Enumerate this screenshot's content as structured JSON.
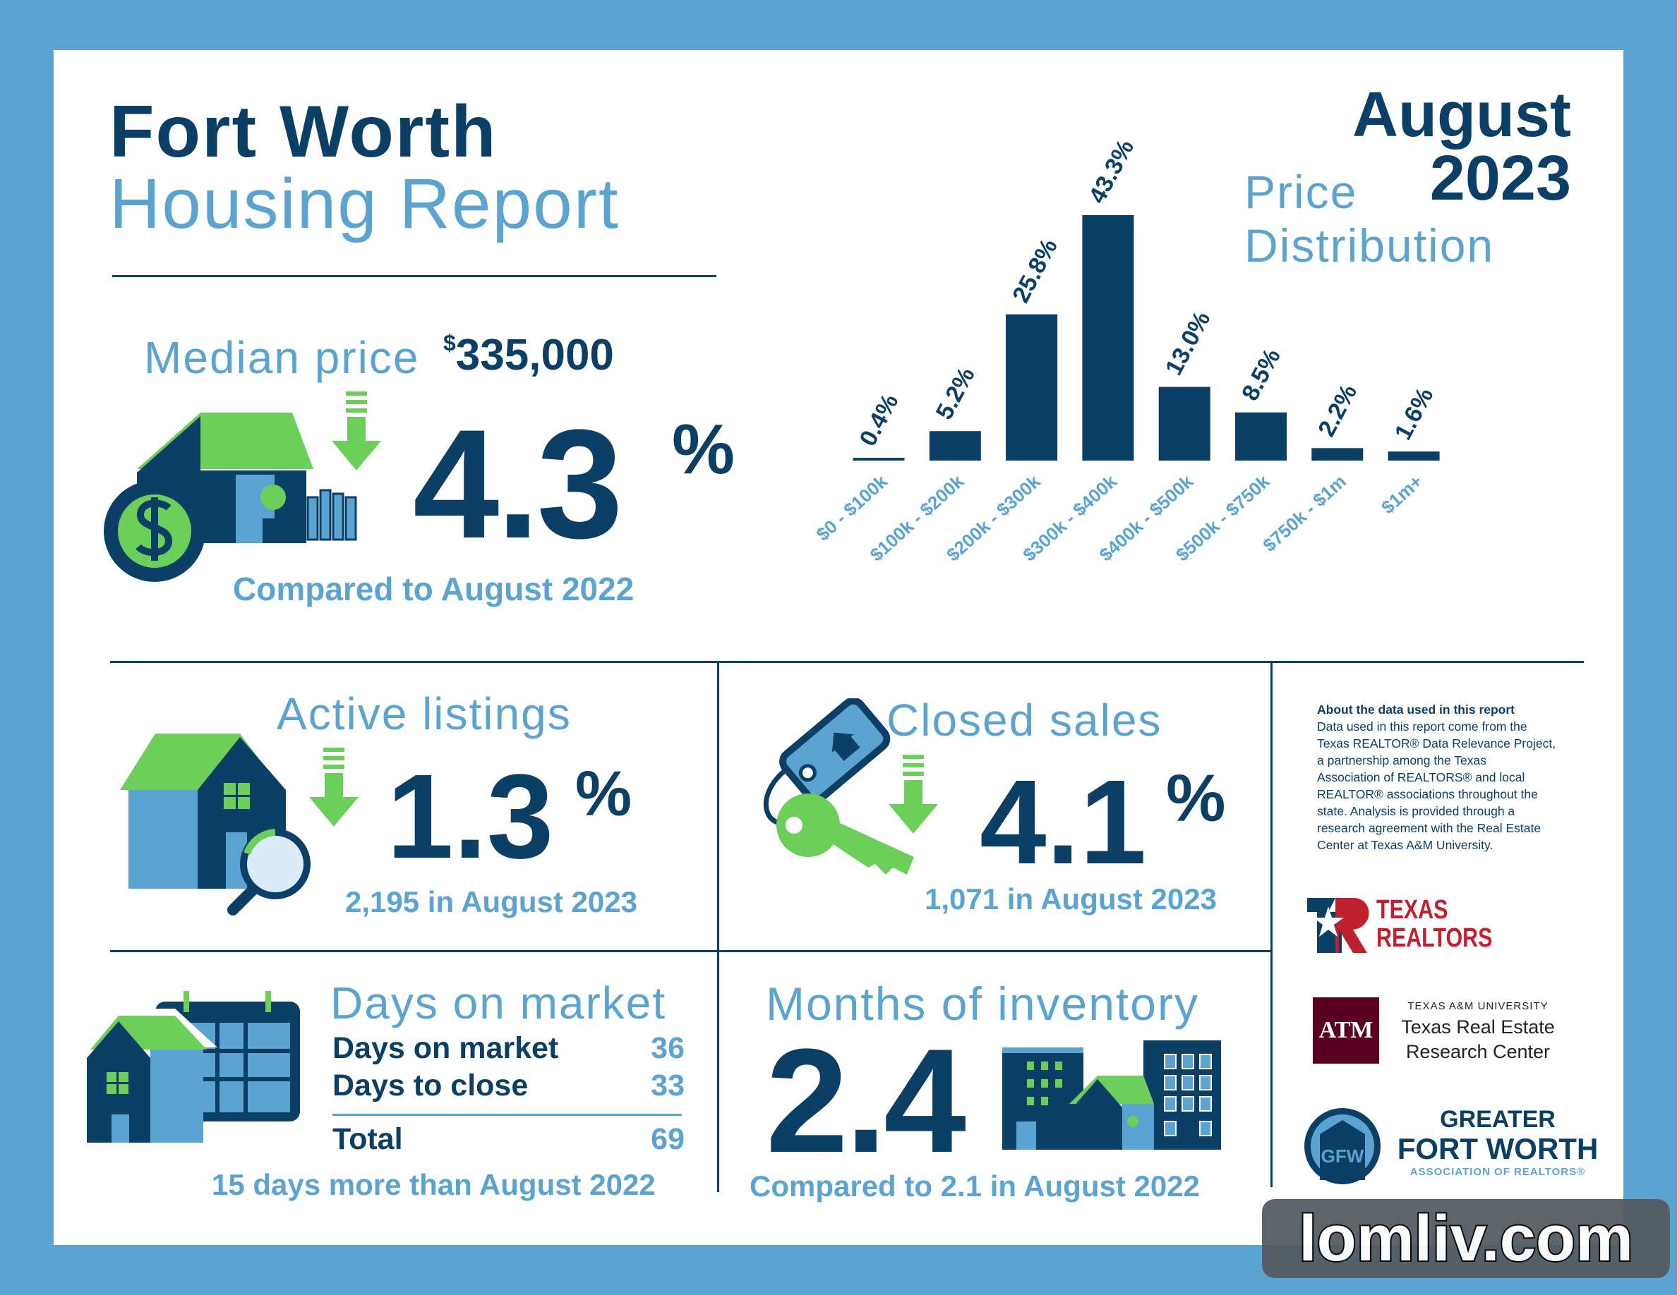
{
  "header": {
    "city": "Fort Worth",
    "subtitle": "Housing Report",
    "month": "August",
    "year": "2023"
  },
  "median": {
    "label": "Median price",
    "currency": "$",
    "value": "335,000",
    "change": "4.3",
    "pct": "%",
    "compare": "Compared to August 2022",
    "direction": "down"
  },
  "active": {
    "title": "Active listings",
    "change": "1.3",
    "pct": "%",
    "detail": "2,195 in August 2023",
    "direction": "down"
  },
  "closed": {
    "title": "Closed sales",
    "change": "4.1",
    "pct": "%",
    "detail": "1,071 in August 2023",
    "direction": "down"
  },
  "dom": {
    "title": "Days on market",
    "rows": [
      {
        "label": "Days on market",
        "value": "36"
      },
      {
        "label": "Days to close",
        "value": "33"
      },
      {
        "label": "Total",
        "value": "69"
      }
    ],
    "note": "15 days more than August 2022"
  },
  "inventory": {
    "title": "Months of inventory",
    "value": "2.4",
    "compare": "Compared to 2.1 in August 2022"
  },
  "about": {
    "heading": "About the data used in this report",
    "lines": [
      "Data used in this report come from the",
      "Texas REALTOR® Data Relevance Project,",
      "a partnership among the Texas",
      "Association of REALTORS® and local",
      "REALTOR® associations throughout the",
      "state. Analysis is provided through a",
      "research agreement with the Real Estate",
      "Center at Texas A&M University."
    ]
  },
  "logos": {
    "texas_realtors": [
      "TEXAS",
      "REALTORS"
    ],
    "tamu": {
      "small": "TEXAS A&M UNIVERSITY",
      "line1": "Texas Real Estate",
      "line2": "Research Center",
      "mark": "ATM"
    },
    "gfw": {
      "line1": "GREATER",
      "line2": "FORT WORTH",
      "line3": "ASSOCIATION OF REALTORS®",
      "mark": "GFW"
    }
  },
  "watermark": "lomliv.com",
  "colors": {
    "navy": "#0c3f66",
    "light_blue": "#5ba3d0",
    "green": "#6ccf5a",
    "border": "#5ba3d0"
  },
  "chart_data": {
    "type": "bar",
    "title": "Price Distribution",
    "title_lines": [
      "Price",
      "Distribution"
    ],
    "categories": [
      "$0 - $100k",
      "$100k - $200k",
      "$200k - $300k",
      "$300k - $400k",
      "$400k - $500k",
      "$500k - $750k",
      "$750k - $1m",
      "$1m+"
    ],
    "values": [
      0.4,
      5.2,
      25.8,
      43.3,
      13.0,
      8.5,
      2.2,
      1.6
    ],
    "labels": [
      "0.4%",
      "5.2%",
      "25.8%",
      "43.3%",
      "13.0%",
      "8.5%",
      "2.2%",
      "1.6%"
    ],
    "xlabel": "",
    "ylabel": "",
    "ylim": [
      0,
      45
    ],
    "grid": false,
    "unit": "%"
  }
}
